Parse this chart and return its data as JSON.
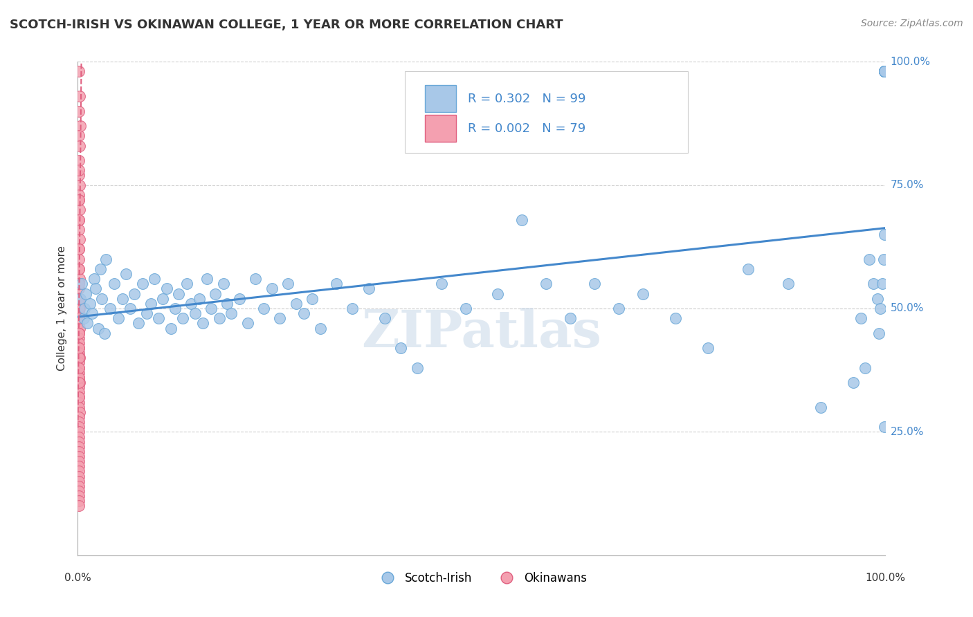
{
  "title": "SCOTCH-IRISH VS OKINAWAN COLLEGE, 1 YEAR OR MORE CORRELATION CHART",
  "source_text": "Source: ZipAtlas.com",
  "ylabel": "College, 1 year or more",
  "xlim": [
    0.0,
    1.0
  ],
  "ylim": [
    0.0,
    1.0
  ],
  "ytick_labels": [
    "25.0%",
    "50.0%",
    "75.0%",
    "100.0%"
  ],
  "ytick_positions": [
    0.25,
    0.5,
    0.75,
    1.0
  ],
  "grid_color": "#cccccc",
  "background_color": "#ffffff",
  "blue_color": "#a8c8e8",
  "pink_color": "#f4a0b0",
  "blue_edge_color": "#6aa8d8",
  "pink_edge_color": "#e06080",
  "trend_blue": "#4488cc",
  "trend_pink": "#e06080",
  "R_blue": 0.302,
  "N_blue": 99,
  "R_pink": 0.002,
  "N_pink": 79,
  "watermark": "ZIPatlas",
  "scotch_irish_x": [
    0.003,
    0.005,
    0.007,
    0.008,
    0.01,
    0.012,
    0.015,
    0.018,
    0.02,
    0.022,
    0.025,
    0.028,
    0.03,
    0.033,
    0.035,
    0.04,
    0.045,
    0.05,
    0.055,
    0.06,
    0.065,
    0.07,
    0.075,
    0.08,
    0.085,
    0.09,
    0.095,
    0.1,
    0.105,
    0.11,
    0.115,
    0.12,
    0.125,
    0.13,
    0.135,
    0.14,
    0.145,
    0.15,
    0.155,
    0.16,
    0.165,
    0.17,
    0.175,
    0.18,
    0.185,
    0.19,
    0.2,
    0.21,
    0.22,
    0.23,
    0.24,
    0.25,
    0.26,
    0.27,
    0.28,
    0.29,
    0.3,
    0.32,
    0.34,
    0.36,
    0.38,
    0.4,
    0.42,
    0.45,
    0.48,
    0.52,
    0.55,
    0.58,
    0.61,
    0.64,
    0.67,
    0.7,
    0.74,
    0.78,
    0.83,
    0.88,
    0.92,
    0.96,
    0.97,
    0.975,
    0.98,
    0.985,
    0.99,
    0.992,
    0.994,
    0.996,
    0.998,
    0.999,
    0.999,
    0.999,
    0.999,
    0.999,
    0.999,
    0.999,
    0.999,
    0.999,
    0.999,
    0.999,
    0.999
  ],
  "scotch_irish_y": [
    0.52,
    0.55,
    0.48,
    0.5,
    0.53,
    0.47,
    0.51,
    0.49,
    0.56,
    0.54,
    0.46,
    0.58,
    0.52,
    0.45,
    0.6,
    0.5,
    0.55,
    0.48,
    0.52,
    0.57,
    0.5,
    0.53,
    0.47,
    0.55,
    0.49,
    0.51,
    0.56,
    0.48,
    0.52,
    0.54,
    0.46,
    0.5,
    0.53,
    0.48,
    0.55,
    0.51,
    0.49,
    0.52,
    0.47,
    0.56,
    0.5,
    0.53,
    0.48,
    0.55,
    0.51,
    0.49,
    0.52,
    0.47,
    0.56,
    0.5,
    0.54,
    0.48,
    0.55,
    0.51,
    0.49,
    0.52,
    0.46,
    0.55,
    0.5,
    0.54,
    0.48,
    0.42,
    0.38,
    0.55,
    0.5,
    0.53,
    0.68,
    0.55,
    0.48,
    0.55,
    0.5,
    0.53,
    0.48,
    0.42,
    0.58,
    0.55,
    0.3,
    0.35,
    0.48,
    0.38,
    0.6,
    0.55,
    0.52,
    0.45,
    0.5,
    0.55,
    0.6,
    0.65,
    0.98,
    0.98,
    0.98,
    0.98,
    0.98,
    0.98,
    0.98,
    0.98,
    0.98,
    0.98,
    0.26
  ],
  "okinawan_x": [
    0.001,
    0.002,
    0.001,
    0.003,
    0.001,
    0.002,
    0.001,
    0.001,
    0.002,
    0.001,
    0.001,
    0.002,
    0.001,
    0.001,
    0.002,
    0.001,
    0.001,
    0.001,
    0.002,
    0.001,
    0.001,
    0.001,
    0.002,
    0.001,
    0.001,
    0.001,
    0.002,
    0.001,
    0.001,
    0.001,
    0.001,
    0.001,
    0.002,
    0.001,
    0.001,
    0.001,
    0.001,
    0.002,
    0.001,
    0.001,
    0.001,
    0.001,
    0.001,
    0.002,
    0.001,
    0.001,
    0.001,
    0.001,
    0.001,
    0.001,
    0.001,
    0.001,
    0.001,
    0.001,
    0.001,
    0.001,
    0.001,
    0.001,
    0.001,
    0.001,
    0.001,
    0.001,
    0.001,
    0.001,
    0.001,
    0.001,
    0.001,
    0.001,
    0.001,
    0.001,
    0.001,
    0.001,
    0.001,
    0.001,
    0.001,
    0.001,
    0.001,
    0.001,
    0.001
  ],
  "okinawan_y": [
    0.98,
    0.93,
    0.9,
    0.87,
    0.85,
    0.83,
    0.8,
    0.77,
    0.75,
    0.73,
    0.72,
    0.7,
    0.68,
    0.66,
    0.64,
    0.62,
    0.6,
    0.58,
    0.56,
    0.54,
    0.52,
    0.51,
    0.5,
    0.49,
    0.48,
    0.47,
    0.46,
    0.45,
    0.44,
    0.43,
    0.42,
    0.41,
    0.4,
    0.39,
    0.38,
    0.37,
    0.36,
    0.35,
    0.34,
    0.33,
    0.32,
    0.31,
    0.3,
    0.29,
    0.28,
    0.27,
    0.26,
    0.25,
    0.24,
    0.23,
    0.22,
    0.21,
    0.2,
    0.19,
    0.18,
    0.17,
    0.16,
    0.15,
    0.14,
    0.13,
    0.12,
    0.11,
    0.1,
    0.36,
    0.35,
    0.4,
    0.5,
    0.45,
    0.38,
    0.42,
    0.48,
    0.52,
    0.55,
    0.58,
    0.62,
    0.68,
    0.72,
    0.78,
    0.32
  ]
}
